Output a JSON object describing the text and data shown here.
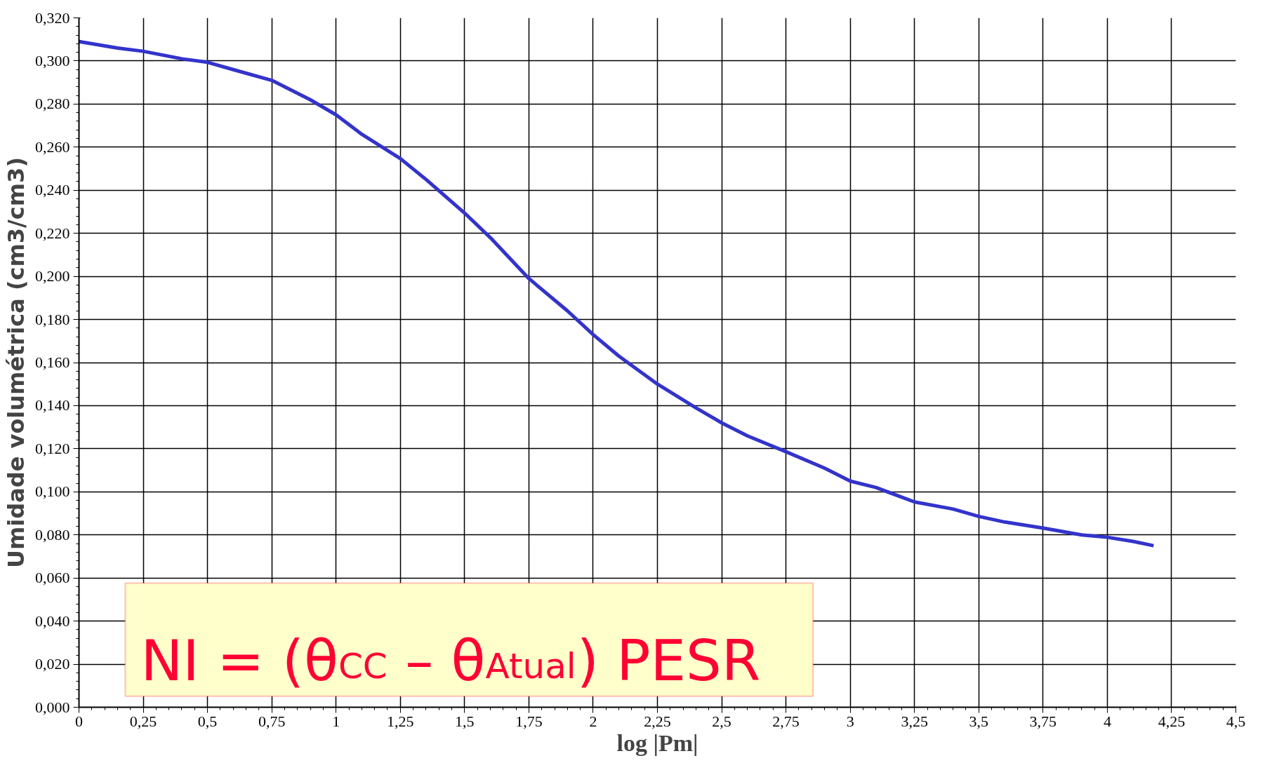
{
  "chart_data": {
    "type": "line",
    "xlabel": "log |Pm|",
    "ylabel": "Umidade volumétrica (cm3/cm3)",
    "x": [
      0,
      0.15,
      0.25,
      0.4,
      0.5,
      0.6,
      0.75,
      0.9,
      1,
      1.1,
      1.25,
      1.35,
      1.5,
      1.6,
      1.75,
      1.9,
      2,
      2.1,
      2.25,
      2.4,
      2.5,
      2.6,
      2.75,
      2.9,
      3,
      3.1,
      3.25,
      3.4,
      3.5,
      3.6,
      3.75,
      3.9,
      4,
      4.1,
      4.18
    ],
    "series": [
      {
        "color": "#3333cc",
        "values": [
          0.309,
          0.306,
          0.3045,
          0.301,
          0.2994,
          0.296,
          0.291,
          0.282,
          0.275,
          0.266,
          0.2547,
          0.245,
          0.2294,
          0.218,
          0.199,
          0.184,
          0.173,
          0.163,
          0.15,
          0.139,
          0.132,
          0.126,
          0.1186,
          0.111,
          0.105,
          0.102,
          0.0953,
          0.092,
          0.0886,
          0.086,
          0.0832,
          0.08,
          0.0789,
          0.077,
          0.075
        ]
      }
    ],
    "xlim": [
      0,
      4.5
    ],
    "xticks": [
      0,
      {
        "value": 0.25,
        "label": "0,25"
      },
      {
        "value": 0.5,
        "label": "0,5"
      },
      {
        "value": 0.75,
        "label": "0,75"
      },
      1,
      {
        "value": 1.25,
        "label": "1,25"
      },
      {
        "value": 1.5,
        "label": "1,5"
      },
      {
        "value": 1.75,
        "label": "1,75"
      },
      2,
      {
        "value": 2.25,
        "label": "2,25"
      },
      {
        "value": 2.5,
        "label": "2,5"
      },
      {
        "value": 2.75,
        "label": "2,75"
      },
      3,
      {
        "value": 3.25,
        "label": "3,25"
      },
      {
        "value": 3.5,
        "label": "3,5"
      },
      {
        "value": 3.75,
        "label": "3,75"
      },
      4,
      {
        "value": 4.25,
        "label": "4,25"
      },
      {
        "value": 4.5,
        "label": "4,5"
      }
    ],
    "ylim": [
      0,
      0.32
    ],
    "yticks": [
      {
        "value": 0,
        "label": "0,000"
      },
      {
        "value": 0.02,
        "label": "0,020"
      },
      {
        "value": 0.04,
        "label": "0,040"
      },
      {
        "value": 0.06,
        "label": "0,060"
      },
      {
        "value": 0.08,
        "label": "0,080"
      },
      {
        "value": 0.1,
        "label": "0,100"
      },
      {
        "value": 0.12,
        "label": "0,120"
      },
      {
        "value": 0.14,
        "label": "0,140"
      },
      {
        "value": 0.16,
        "label": "0,160"
      },
      {
        "value": 0.18,
        "label": "0,180"
      },
      {
        "value": 0.2,
        "label": "0,200"
      },
      {
        "value": 0.22,
        "label": "0,220"
      },
      {
        "value": 0.24,
        "label": "0,240"
      },
      {
        "value": 0.26,
        "label": "0,260"
      },
      {
        "value": 0.28,
        "label": "0,280"
      },
      {
        "value": 0.3,
        "label": "0,300"
      },
      {
        "value": 0.32,
        "label": "0,320"
      }
    ],
    "grid": true,
    "line_style": "solid",
    "annotations": [
      "NI = (θ$_{CC}$ – θ$_{Atual}$) PESR"
    ]
  }
}
